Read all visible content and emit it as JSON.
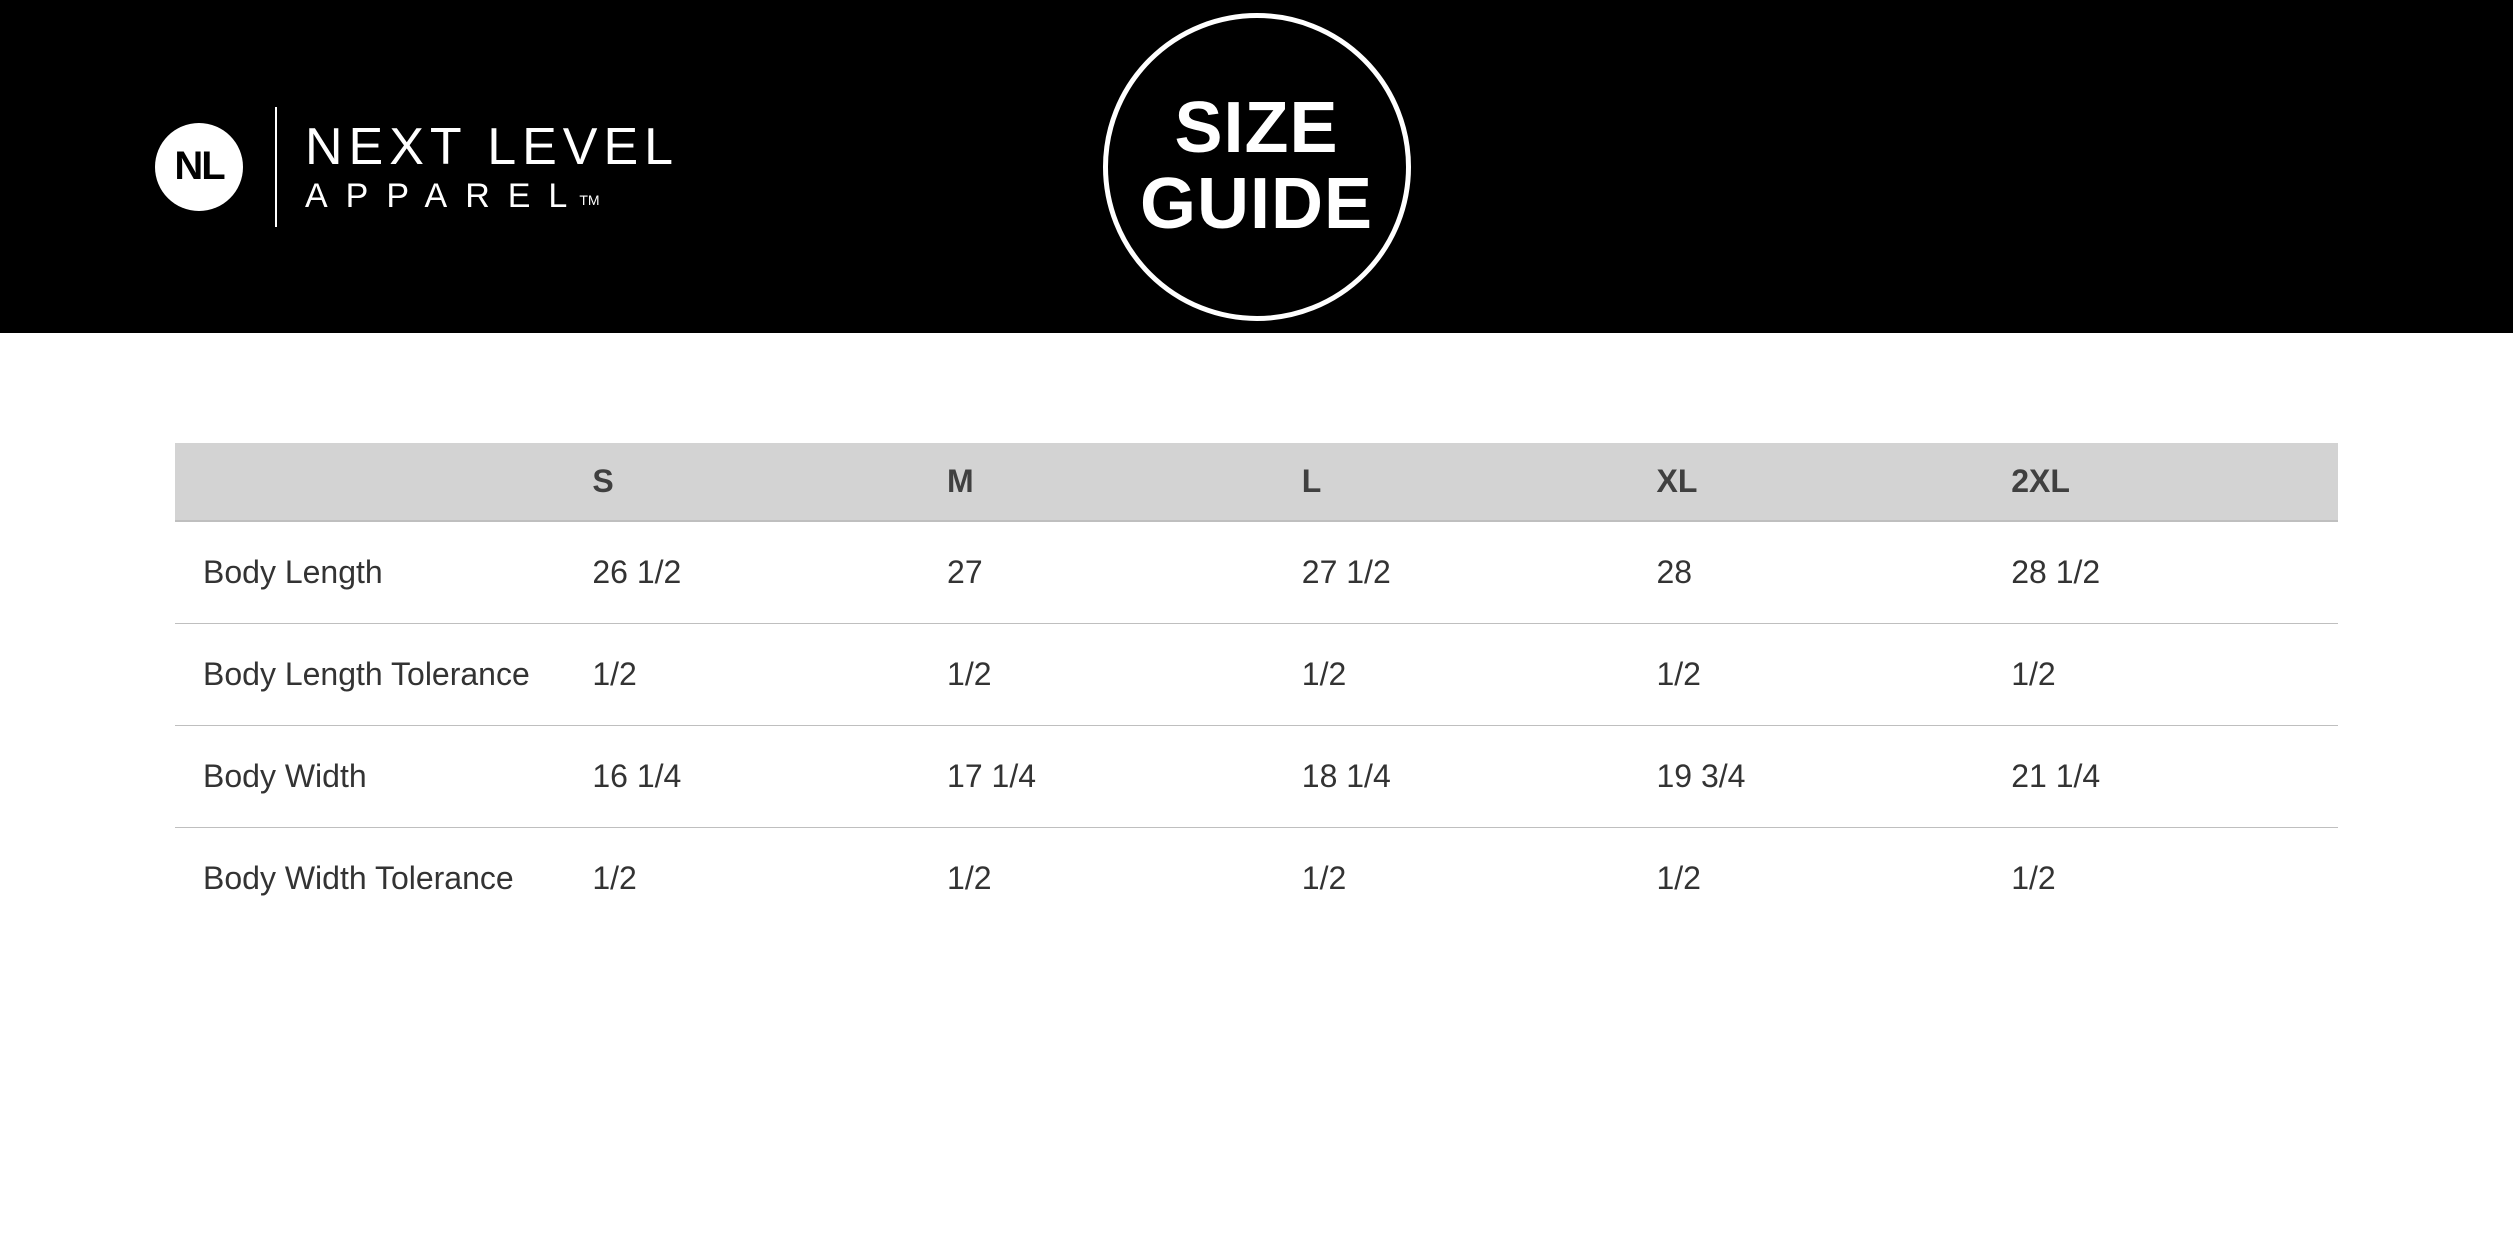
{
  "header": {
    "logo_initials": "NL",
    "brand_line1": "NEXT LEVEL",
    "brand_line2": "APPAREL",
    "brand_tm": "TM",
    "badge_line1": "SIZE",
    "badge_line2": "GUIDE",
    "bg_color": "#000000",
    "fg_color": "#ffffff"
  },
  "size_table": {
    "type": "table",
    "header_bg": "#d3d3d3",
    "header_border": "#bfbfbf",
    "row_border": "#bfbfbf",
    "text_color": "#333333",
    "header_fontsize": 32,
    "cell_fontsize": 32,
    "columns": [
      "",
      "S",
      "M",
      "L",
      "XL",
      "2XL"
    ],
    "col_widths_pct": [
      18,
      16.4,
      16.4,
      16.4,
      16.4,
      16.4
    ],
    "rows": [
      {
        "label": "Body Length",
        "values": [
          "26 1/2",
          "27",
          "27 1/2",
          "28",
          "28 1/2"
        ]
      },
      {
        "label": "Body Length Tolerance",
        "values": [
          "1/2",
          "1/2",
          "1/2",
          "1/2",
          "1/2"
        ]
      },
      {
        "label": "Body Width",
        "values": [
          "16 1/4",
          "17 1/4",
          "18 1/4",
          "19 3/4",
          "21 1/4"
        ]
      },
      {
        "label": "Body Width Tolerance",
        "values": [
          "1/2",
          "1/2",
          "1/2",
          "1/2",
          "1/2"
        ]
      }
    ]
  }
}
